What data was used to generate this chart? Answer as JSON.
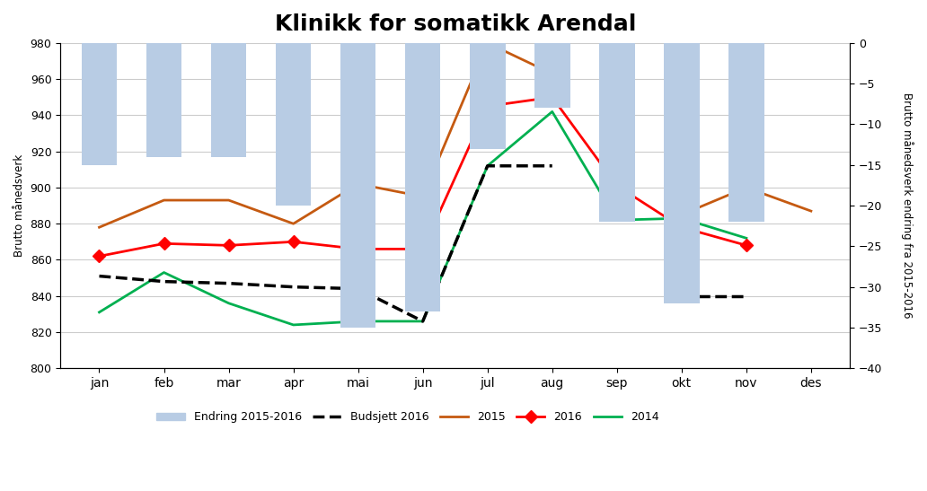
{
  "title": "Klinikk for somatikk Arendal",
  "months": [
    "jan",
    "feb",
    "mar",
    "apr",
    "mai",
    "jun",
    "jul",
    "aug",
    "sep",
    "okt",
    "nov",
    "des"
  ],
  "ylabel_left": "Brutto månedsverk",
  "ylabel_right": "Brutto månedsverk endring fra 2015-2016",
  "ylim_left": [
    800,
    980
  ],
  "ylim_right": [
    -40,
    0
  ],
  "yticks_left": [
    800,
    820,
    840,
    860,
    880,
    900,
    920,
    940,
    960,
    980
  ],
  "yticks_right": [
    -40,
    -35,
    -30,
    -25,
    -20,
    -15,
    -10,
    -5,
    0
  ],
  "bar_color": "#b8cce4",
  "bar_values": [
    -15,
    null,
    -14,
    null,
    -14,
    null,
    -20,
    null,
    -35,
    -33,
    null,
    -13,
    null,
    -8,
    null,
    -22,
    null,
    -32,
    -22,
    null
  ],
  "bar_indices": [
    0,
    1,
    2,
    3,
    4,
    5,
    6,
    7,
    8,
    9,
    10
  ],
  "bar_heights": [
    -15,
    -14,
    -14,
    -20,
    -35,
    -33,
    -13,
    -8,
    -22,
    -32,
    -22
  ],
  "budsjett2016": [
    851,
    848,
    847,
    845,
    844,
    826,
    912,
    912,
    null,
    840,
    840,
    null
  ],
  "line2015": [
    878,
    893,
    893,
    880,
    902,
    895,
    980,
    963,
    null,
    885,
    900,
    887
  ],
  "line2016": [
    862,
    869,
    868,
    870,
    866,
    866,
    945,
    950,
    901,
    878,
    868,
    null
  ],
  "line2014": [
    831,
    853,
    836,
    824,
    826,
    826,
    912,
    942,
    882,
    883,
    872,
    null
  ],
  "legend_labels": [
    "Endring 2015-2016",
    "Budsjett 2016",
    "2015",
    "2016",
    "2014"
  ],
  "color_budsjett": "#000000",
  "color_2015": "#c55a11",
  "color_2016": "#ff0000",
  "color_2014": "#00b050",
  "fig_width": 10.32,
  "fig_height": 5.47,
  "dpi": 100
}
